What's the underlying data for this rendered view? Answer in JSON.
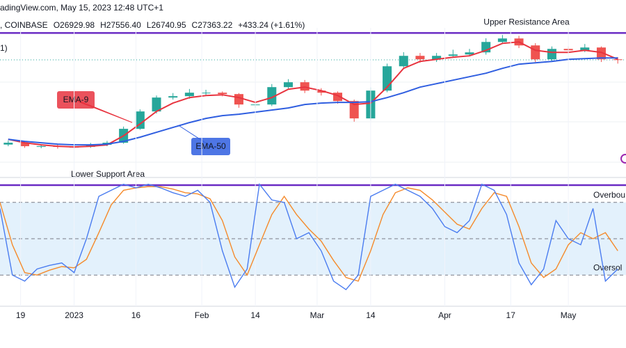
{
  "chart_data": [
    {
      "type": "candlestick",
      "title": "adingView.com, May 15, 2023 12:48 UTC+1",
      "subtitle": [
        ", COINBASE",
        "O26929.98",
        "H27556.40",
        "L26740.95",
        "C27363.22",
        "+433.24 (+1.61%)"
      ],
      "corner_label": "1)",
      "xlim": [
        0,
        152
      ],
      "ylim": [
        12975,
        31275
      ],
      "x": [
        2,
        6,
        10,
        14,
        18,
        22,
        26,
        30,
        34,
        38,
        42,
        46,
        50,
        54,
        58,
        62,
        66,
        70,
        74,
        78,
        82,
        86,
        90,
        94,
        98,
        102,
        106,
        110,
        114,
        118,
        122,
        126,
        130,
        134,
        138,
        142,
        146,
        150
      ],
      "open": [
        17000,
        17225,
        16800,
        16800,
        16715,
        16715,
        16970,
        17225,
        18925,
        21050,
        22750,
        22920,
        23345,
        23345,
        23175,
        21900,
        21900,
        24025,
        24620,
        23600,
        23345,
        22325,
        20200,
        23600,
        26575,
        27850,
        27425,
        27850,
        28020,
        28275,
        29550,
        29975,
        29125,
        27425,
        28700,
        28530,
        28870,
        27425
      ],
      "high": [
        17500,
        17400,
        17050,
        17000,
        16950,
        17200,
        17450,
        19200,
        21300,
        23000,
        23300,
        23800,
        23700,
        23500,
        23300,
        22300,
        24400,
        25000,
        24900,
        23900,
        23500,
        22500,
        24000,
        26900,
        28300,
        28200,
        28200,
        28600,
        28700,
        30000,
        30400,
        30300,
        29400,
        29000,
        29000,
        29300,
        29000,
        27700
      ],
      "low": [
        16800,
        16600,
        16550,
        16500,
        16500,
        16600,
        16800,
        17100,
        18800,
        20800,
        22500,
        22600,
        23000,
        22900,
        21500,
        21500,
        21700,
        23800,
        23300,
        23000,
        22000,
        19800,
        20000,
        23400,
        26300,
        27000,
        27100,
        27600,
        27800,
        28000,
        29300,
        28800,
        27100,
        27200,
        28200,
        28300,
        27100,
        26900
      ],
      "close": [
        17225,
        16800,
        16800,
        16715,
        16715,
        16970,
        17225,
        18925,
        21050,
        22750,
        22920,
        23345,
        23345,
        23175,
        21900,
        21900,
        24025,
        24620,
        23600,
        23345,
        22325,
        20200,
        23600,
        26575,
        27850,
        27425,
        27850,
        28020,
        28275,
        29550,
        29975,
        29125,
        27425,
        28700,
        28530,
        28870,
        27425,
        27363
      ],
      "up_color": "#26a69a",
      "down_color": "#ef5350",
      "series": [
        {
          "name": "EMA-9",
          "color": "#e8343f",
          "values": [
            17650,
            17225,
            16970,
            16800,
            16715,
            16800,
            16970,
            18075,
            19520,
            21050,
            22070,
            22750,
            23005,
            23090,
            22750,
            22155,
            22750,
            23770,
            24025,
            23600,
            23005,
            21900,
            22070,
            24025,
            26320,
            27170,
            27425,
            27680,
            27850,
            28530,
            29380,
            29550,
            28530,
            28275,
            28275,
            28530,
            28275,
            27425
          ]
        },
        {
          "name": "EMA-50",
          "color": "#2f5ee0",
          "values": [
            17650,
            17395,
            17225,
            17055,
            16970,
            16970,
            17055,
            17395,
            17905,
            18500,
            19095,
            19690,
            20200,
            20540,
            20710,
            20965,
            21220,
            21475,
            21900,
            22070,
            22155,
            22155,
            22240,
            22750,
            23345,
            24025,
            24450,
            24875,
            25300,
            25725,
            26320,
            26830,
            27000,
            27170,
            27425,
            27510,
            27595,
            27595
          ]
        }
      ],
      "annotations": [
        {
          "text": "Upper Resistance Area",
          "value": 30650,
          "color": "#6a2bc4"
        },
        {
          "text": "Lower Support Area",
          "value": 12040,
          "color": "#6a2bc4"
        }
      ]
    },
    {
      "type": "line",
      "xlim": [
        0,
        152
      ],
      "ylim": [
        0,
        100
      ],
      "xticks": [
        {
          "value": 5,
          "label": "19"
        },
        {
          "value": 18,
          "label": "2023"
        },
        {
          "value": 33,
          "label": "16"
        },
        {
          "value": 49,
          "label": "Feb"
        },
        {
          "value": 62,
          "label": "14"
        },
        {
          "value": 77,
          "label": "Mar"
        },
        {
          "value": 90,
          "label": "14"
        },
        {
          "value": 108,
          "label": "Apr"
        },
        {
          "value": 124,
          "label": "17"
        },
        {
          "value": 138,
          "label": "May"
        }
      ],
      "levels": [
        {
          "value": 80,
          "label": "Overbou"
        },
        {
          "value": 50
        },
        {
          "value": 20,
          "label": "Oversol"
        }
      ],
      "x": [
        0,
        3,
        6,
        9,
        12,
        15,
        18,
        21,
        24,
        27,
        30,
        33,
        36,
        39,
        42,
        45,
        48,
        51,
        54,
        57,
        60,
        63,
        66,
        69,
        72,
        75,
        78,
        81,
        84,
        87,
        90,
        93,
        96,
        99,
        102,
        105,
        108,
        111,
        114,
        117,
        120,
        123,
        126,
        129,
        132,
        135,
        138,
        141,
        144,
        147,
        150
      ],
      "series": [
        {
          "color": "#4a7cf0",
          "values": [
            75,
            20,
            15,
            25,
            28,
            30,
            22,
            50,
            85,
            90,
            95,
            92,
            95,
            92,
            88,
            85,
            90,
            80,
            40,
            10,
            25,
            95,
            82,
            80,
            50,
            55,
            40,
            15,
            8,
            20,
            85,
            90,
            95,
            90,
            85,
            75,
            60,
            55,
            65,
            95,
            90,
            70,
            30,
            12,
            25,
            65,
            50,
            45,
            75,
            15,
            25
          ]
        },
        {
          "color": "#f58a2b",
          "values": [
            80,
            45,
            22,
            20,
            24,
            27,
            26,
            33,
            55,
            78,
            90,
            92,
            93,
            93,
            91,
            88,
            87,
            83,
            65,
            35,
            20,
            45,
            70,
            85,
            70,
            58,
            48,
            32,
            18,
            15,
            40,
            70,
            88,
            92,
            90,
            82,
            72,
            62,
            58,
            75,
            88,
            85,
            60,
            30,
            18,
            25,
            45,
            55,
            50,
            55,
            40
          ]
        }
      ]
    }
  ]
}
